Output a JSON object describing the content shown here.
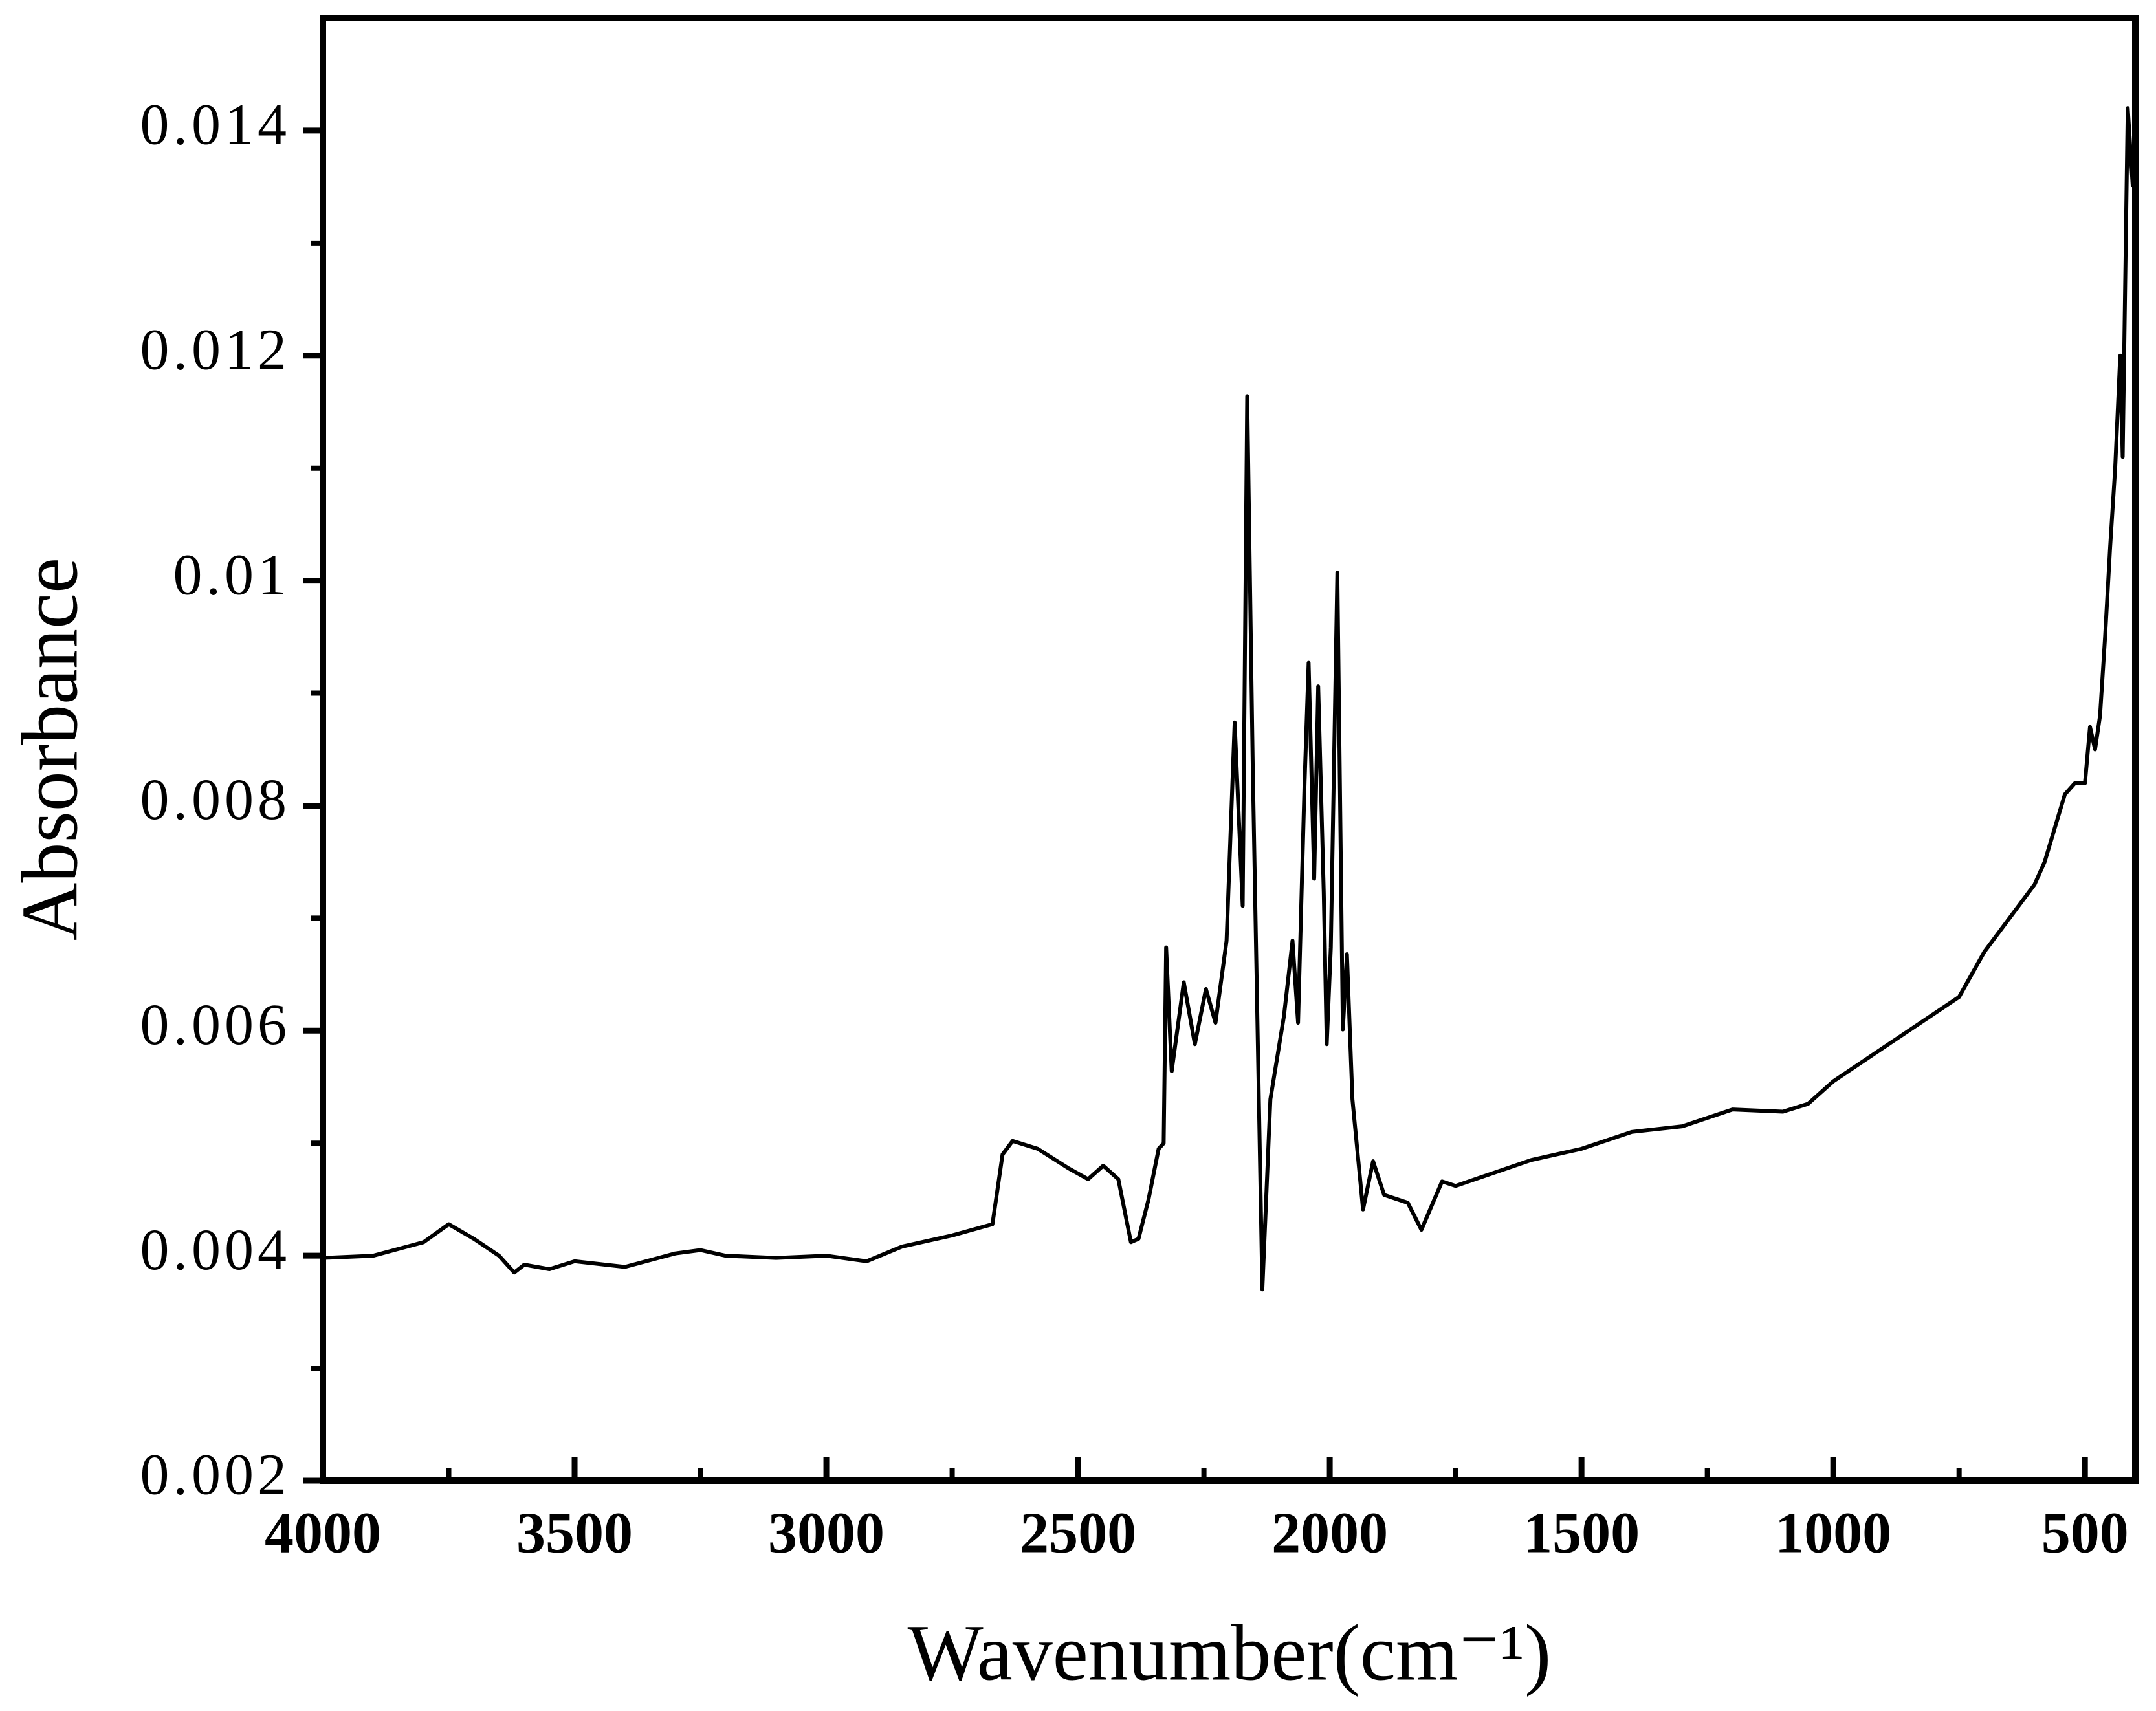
{
  "chart_data": {
    "type": "line",
    "xlabel": "Wavenumber(cm⁻¹)",
    "ylabel": "Absorbance",
    "xlim": [
      4000,
      400
    ],
    "ylim": [
      0.002,
      0.015
    ],
    "xticks": [
      4000,
      3500,
      3000,
      2500,
      2000,
      1500,
      1000,
      500
    ],
    "xminorticks": [
      3750,
      3250,
      2750,
      2250,
      1750,
      1250,
      750
    ],
    "yticks": [
      0.002,
      0.004,
      0.006,
      0.008,
      0.01,
      0.012,
      0.014
    ],
    "yminorticks": [
      0.003,
      0.005,
      0.007,
      0.009,
      0.011,
      0.013
    ],
    "series": [
      {
        "color": "#000000",
        "x": [
          4000,
          3900,
          3800,
          3750,
          3700,
          3650,
          3620,
          3600,
          3550,
          3500,
          3400,
          3300,
          3250,
          3200,
          3100,
          3000,
          2920,
          2850,
          2750,
          2670,
          2650,
          2630,
          2580,
          2520,
          2480,
          2450,
          2420,
          2395,
          2380,
          2360,
          2340,
          2330,
          2325,
          2314,
          2290,
          2268,
          2246,
          2227,
          2205,
          2189,
          2173,
          2164,
          2153,
          2134,
          2118,
          2091,
          2074,
          2063,
          2050,
          2042,
          2031,
          2023,
          2012,
          2006,
          1998,
          1985,
          1974,
          1966,
          1955,
          1934,
          1914,
          1892,
          1845,
          1818,
          1777,
          1750,
          1600,
          1500,
          1400,
          1300,
          1200,
          1100,
          1050,
          1000,
          900,
          800,
          750,
          700,
          650,
          600,
          580,
          560,
          540,
          520,
          500,
          490,
          480,
          470,
          460,
          450,
          440,
          430,
          425,
          415,
          405
        ],
        "values": [
          0.00398,
          0.004,
          0.00412,
          0.00428,
          0.00415,
          0.004,
          0.00385,
          0.00392,
          0.00388,
          0.00395,
          0.0039,
          0.00402,
          0.00405,
          0.004,
          0.00398,
          0.004,
          0.00395,
          0.00408,
          0.00418,
          0.00428,
          0.0049,
          0.00502,
          0.00495,
          0.00478,
          0.00468,
          0.0048,
          0.00468,
          0.00412,
          0.00415,
          0.0045,
          0.00495,
          0.005,
          0.00674,
          0.00564,
          0.00643,
          0.00588,
          0.00637,
          0.00607,
          0.0068,
          0.00874,
          0.00711,
          0.01164,
          0.00833,
          0.0037,
          0.00539,
          0.00613,
          0.0068,
          0.00607,
          0.00821,
          0.00927,
          0.00735,
          0.00906,
          0.00723,
          0.00588,
          0.00674,
          0.01007,
          0.00601,
          0.00668,
          0.00539,
          0.00441,
          0.00484,
          0.00454,
          0.00447,
          0.00423,
          0.00466,
          0.00462,
          0.00485,
          0.00495,
          0.0051,
          0.00515,
          0.0053,
          0.00528,
          0.00535,
          0.00555,
          0.00585,
          0.00615,
          0.0063,
          0.0067,
          0.007,
          0.0073,
          0.0075,
          0.0078,
          0.0081,
          0.0082,
          0.0082,
          0.0087,
          0.0085,
          0.0088,
          0.0095,
          0.0103,
          0.011,
          0.012,
          0.0111,
          0.0142,
          0.0135
        ]
      }
    ]
  }
}
